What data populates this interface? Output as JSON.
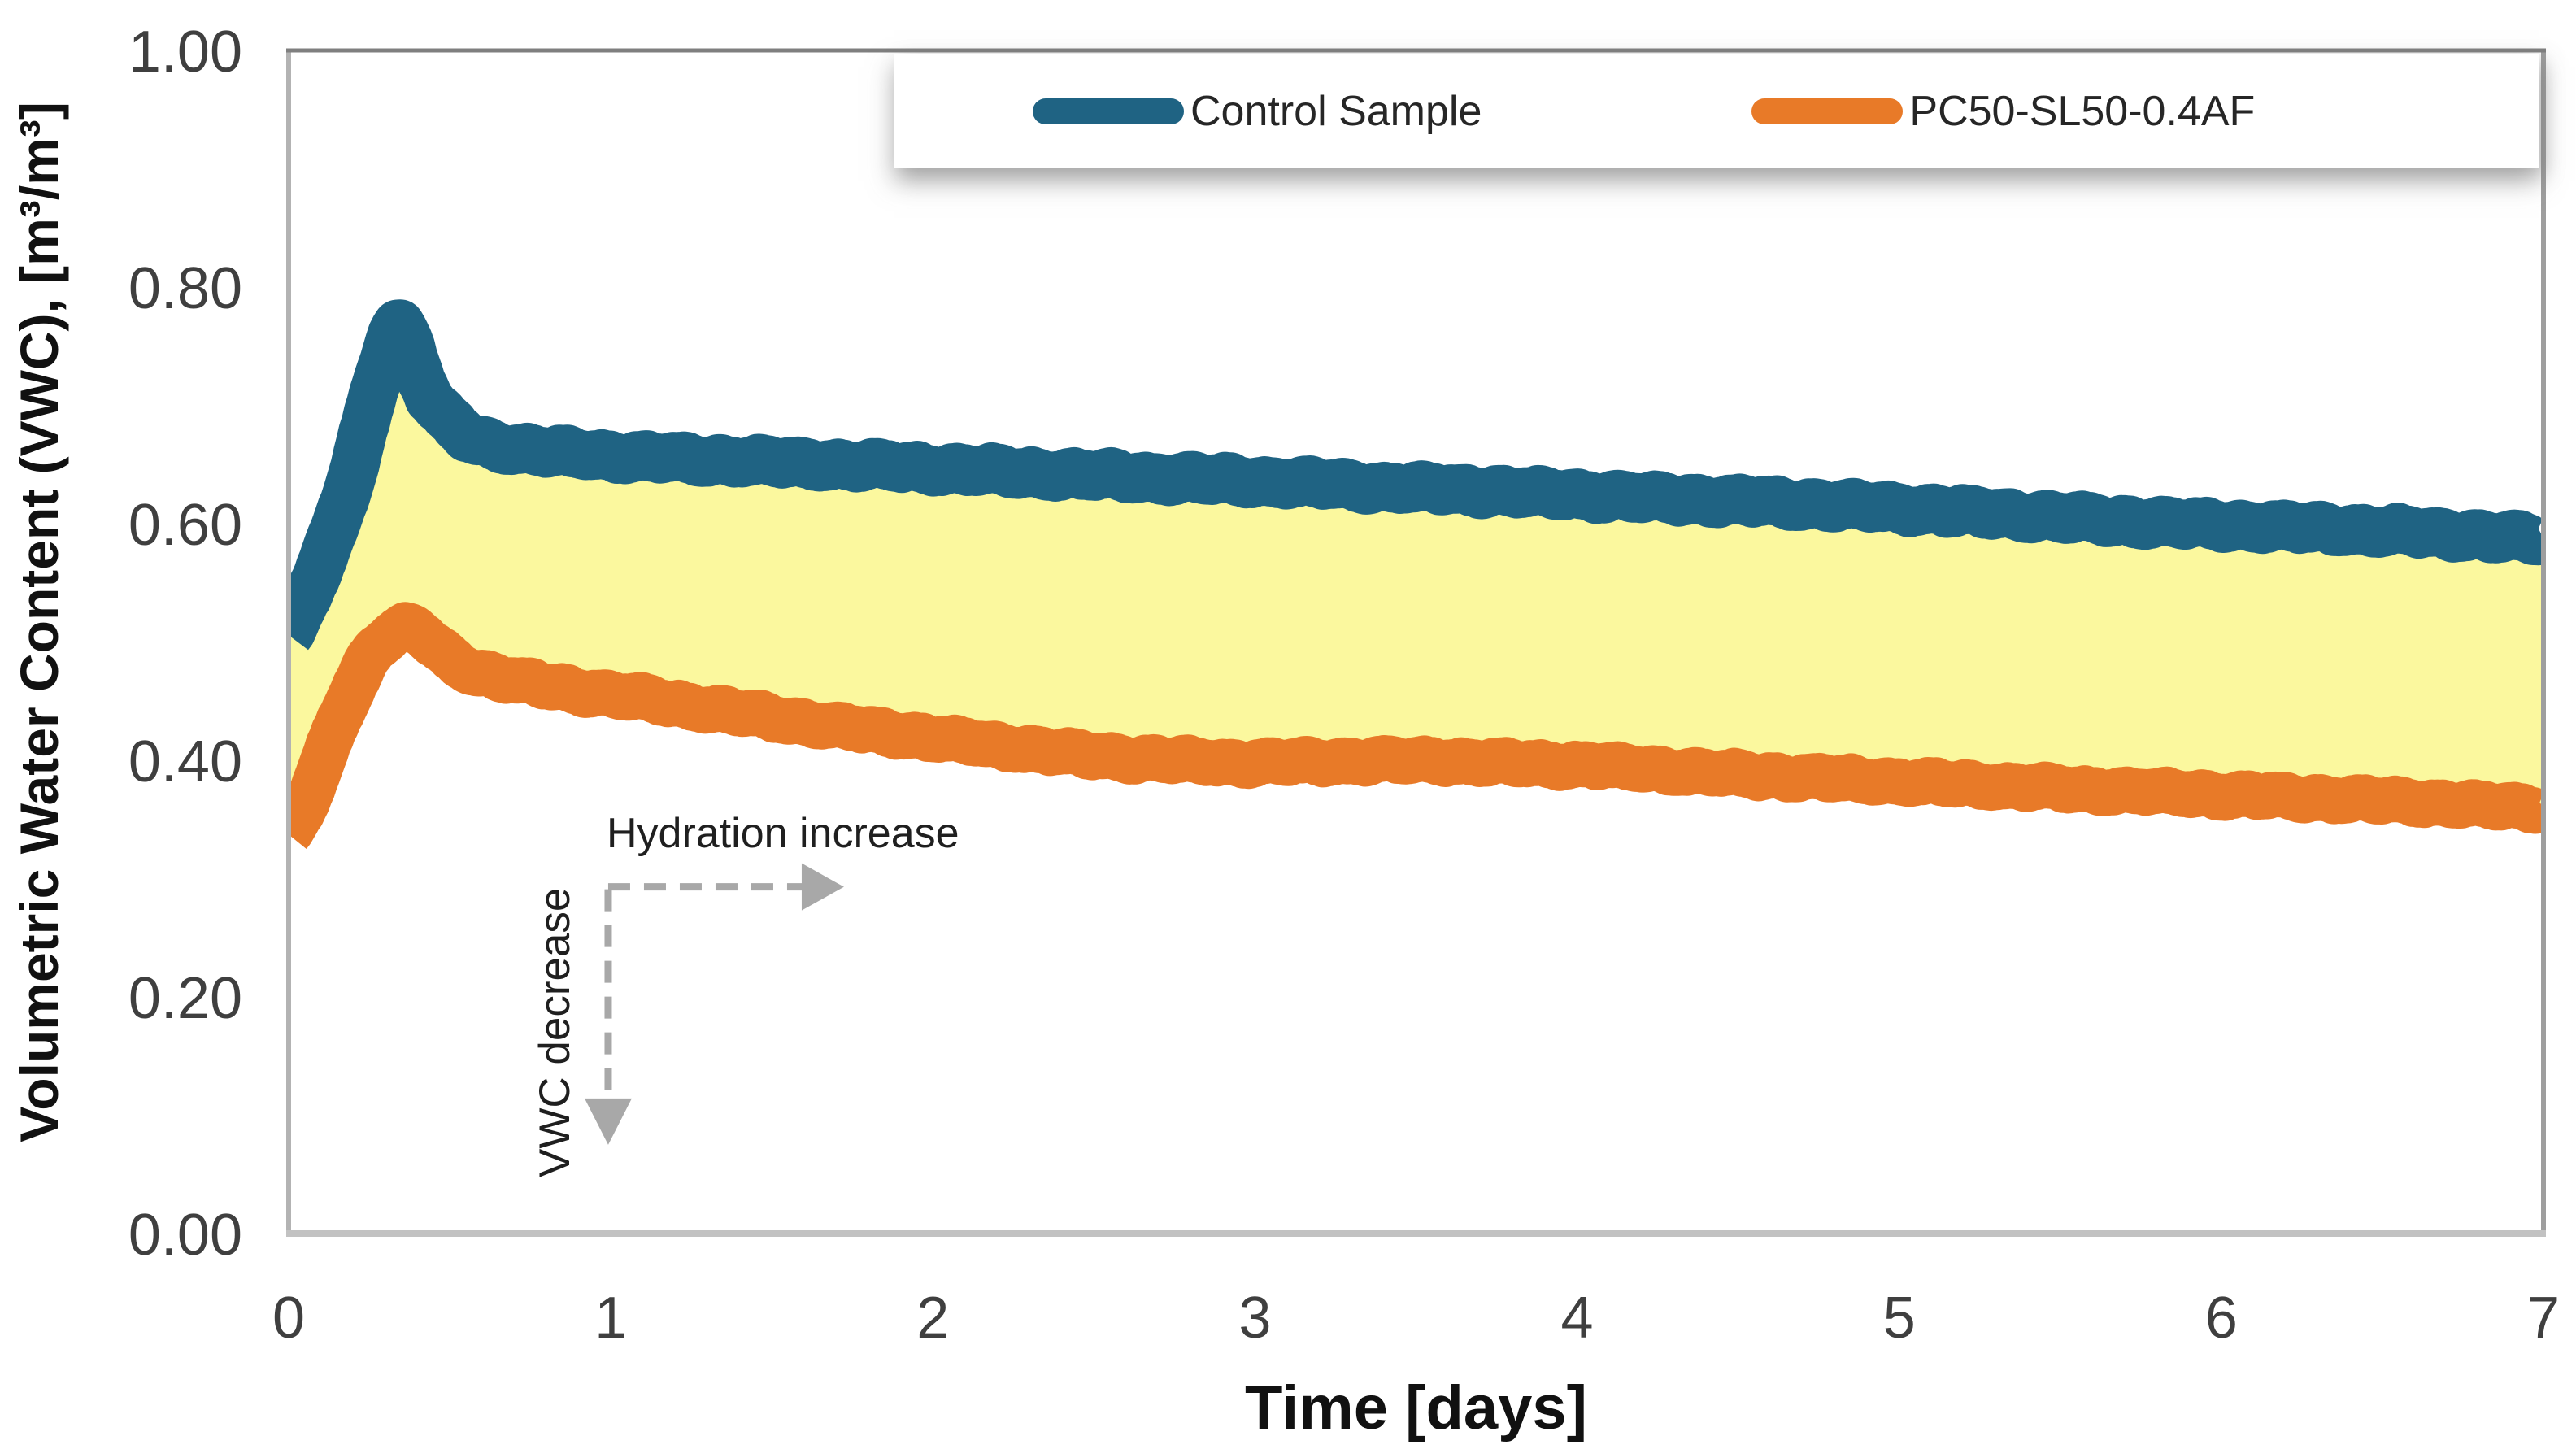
{
  "chart_data": {
    "type": "line",
    "title": "",
    "xlabel": "Time [days]",
    "ylabel": "Volumetric Water Content (VWC), [m³/m³]",
    "xlim": [
      0,
      7
    ],
    "ylim": [
      0,
      1
    ],
    "grid": false,
    "legend_position": "top",
    "x_ticks": [
      0,
      1,
      2,
      3,
      4,
      5,
      6,
      7
    ],
    "x_ticklabels": [
      "0",
      "1",
      "2",
      "3",
      "4",
      "5",
      "6",
      "7"
    ],
    "y_ticks": [
      1.0,
      0.8,
      0.6,
      0.4,
      0.2,
      0.0
    ],
    "y_ticklabels": [
      "1.00",
      "0.80",
      "0.60",
      "0.40",
      "0.20",
      "0.00"
    ],
    "axis_border_color": "#b3b3b3",
    "axis_top_border_color": "#7f7f7f",
    "tick_label_color": "#3f3f3f",
    "fill_between": {
      "color": "#fbf89e",
      "between": [
        "Control Sample",
        "PC50-SL50-0.4AF"
      ]
    },
    "series": [
      {
        "name": "Control Sample",
        "color": "#1f6383",
        "stroke_width": 60,
        "points": [
          [
            0,
            0.505
          ],
          [
            0.05,
            0.535
          ],
          [
            0.1,
            0.565
          ],
          [
            0.15,
            0.6
          ],
          [
            0.2,
            0.645
          ],
          [
            0.25,
            0.695
          ],
          [
            0.29,
            0.735
          ],
          [
            0.33,
            0.768
          ],
          [
            0.36,
            0.762
          ],
          [
            0.4,
            0.73
          ],
          [
            0.44,
            0.705
          ],
          [
            0.5,
            0.685
          ],
          [
            0.57,
            0.672
          ],
          [
            0.65,
            0.666
          ],
          [
            0.75,
            0.662
          ],
          [
            0.9,
            0.659
          ],
          [
            1.1,
            0.656
          ],
          [
            1.4,
            0.653
          ],
          [
            1.7,
            0.65
          ],
          [
            2.0,
            0.647
          ],
          [
            2.3,
            0.643
          ],
          [
            2.6,
            0.64
          ],
          [
            3.0,
            0.636
          ],
          [
            3.4,
            0.631
          ],
          [
            3.8,
            0.627
          ],
          [
            4.2,
            0.622
          ],
          [
            4.6,
            0.618
          ],
          [
            5.0,
            0.613
          ],
          [
            5.4,
            0.607
          ],
          [
            5.8,
            0.601
          ],
          [
            6.2,
            0.597
          ],
          [
            6.6,
            0.593
          ],
          [
            7.0,
            0.587
          ]
        ]
      },
      {
        "name": "PC50-SL50-0.4AF",
        "color": "#e87a28",
        "stroke_width": 56,
        "points": [
          [
            0,
            0.335
          ],
          [
            0.05,
            0.36
          ],
          [
            0.1,
            0.395
          ],
          [
            0.15,
            0.43
          ],
          [
            0.2,
            0.462
          ],
          [
            0.25,
            0.487
          ],
          [
            0.3,
            0.503
          ],
          [
            0.35,
            0.512
          ],
          [
            0.4,
            0.508
          ],
          [
            0.45,
            0.498
          ],
          [
            0.5,
            0.486
          ],
          [
            0.57,
            0.476
          ],
          [
            0.65,
            0.47
          ],
          [
            0.75,
            0.465
          ],
          [
            0.9,
            0.459
          ],
          [
            1.1,
            0.452
          ],
          [
            1.3,
            0.444
          ],
          [
            1.5,
            0.436
          ],
          [
            1.75,
            0.427
          ],
          [
            2.0,
            0.419
          ],
          [
            2.25,
            0.411
          ],
          [
            2.5,
            0.404
          ],
          [
            2.75,
            0.4
          ],
          [
            3.0,
            0.398
          ],
          [
            3.25,
            0.399
          ],
          [
            3.5,
            0.4
          ],
          [
            3.75,
            0.398
          ],
          [
            4.0,
            0.396
          ],
          [
            4.25,
            0.392
          ],
          [
            4.5,
            0.388
          ],
          [
            4.75,
            0.385
          ],
          [
            5.0,
            0.382
          ],
          [
            5.25,
            0.379
          ],
          [
            5.5,
            0.376
          ],
          [
            6.0,
            0.371
          ],
          [
            6.5,
            0.366
          ],
          [
            7.0,
            0.36
          ]
        ]
      }
    ],
    "annotations": [
      {
        "text": "Hydration increase",
        "type": "arrow-right",
        "x": [
          0.992,
          1.724
        ],
        "y": 0.293
      },
      {
        "text": "VWC decrease",
        "type": "arrow-down",
        "x": 0.992,
        "y": [
          0.291,
          0.075
        ]
      }
    ],
    "annotation_arrow_color": "#a8a8a8"
  }
}
